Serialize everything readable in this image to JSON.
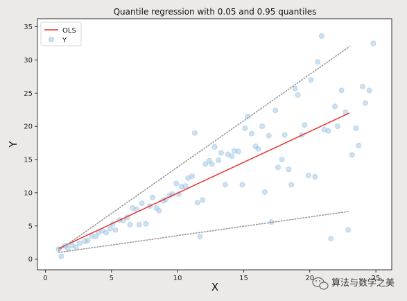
{
  "chart_data": {
    "type": "scatter",
    "title": "Quantile regression with 0.05 and 0.95 quantiles",
    "xlabel": "X",
    "ylabel": "Y",
    "xlim": [
      -0.6,
      26.2
    ],
    "ylim": [
      -1.6,
      36.2
    ],
    "xticks": [
      0,
      5,
      10,
      15,
      20,
      25
    ],
    "yticks": [
      0,
      5,
      10,
      15,
      20,
      25,
      30,
      35
    ],
    "legend_position": "top-left",
    "legend": [
      {
        "label": "OLS",
        "kind": "line",
        "color": "#e8312b"
      },
      {
        "label": "Y",
        "kind": "marker",
        "color": "#8fbcdf"
      }
    ],
    "scatter": {
      "name": "Y",
      "color": "#8fbcdf",
      "points": [
        [
          1,
          1.5
        ],
        [
          1.2,
          0.4
        ],
        [
          1.5,
          2.0
        ],
        [
          1.7,
          1.6
        ],
        [
          2.0,
          2.1
        ],
        [
          2.3,
          1.8
        ],
        [
          2.6,
          2.4
        ],
        [
          3.0,
          2.7
        ],
        [
          3.2,
          2.8
        ],
        [
          3.5,
          3.5
        ],
        [
          3.8,
          3.4
        ],
        [
          4.0,
          4.0
        ],
        [
          4.3,
          4.3
        ],
        [
          4.6,
          4.0
        ],
        [
          4.9,
          4.6
        ],
        [
          5.1,
          5.3
        ],
        [
          5.3,
          4.4
        ],
        [
          5.6,
          5.9
        ],
        [
          5.9,
          5.8
        ],
        [
          6.2,
          6.3
        ],
        [
          6.4,
          5.2
        ],
        [
          6.6,
          7.7
        ],
        [
          6.9,
          7.5
        ],
        [
          7.1,
          5.2
        ],
        [
          7.3,
          8.4
        ],
        [
          7.6,
          5.3
        ],
        [
          7.9,
          8.0
        ],
        [
          8.1,
          9.3
        ],
        [
          8.4,
          7.7
        ],
        [
          8.6,
          7.3
        ],
        [
          8.9,
          8.8
        ],
        [
          9.1,
          9.0
        ],
        [
          9.4,
          9.6
        ],
        [
          9.6,
          9.8
        ],
        [
          9.9,
          11.4
        ],
        [
          10.1,
          9.8
        ],
        [
          10.3,
          10.9
        ],
        [
          10.6,
          11.0
        ],
        [
          10.8,
          12.2
        ],
        [
          11.1,
          12.5
        ],
        [
          11.3,
          19.0
        ],
        [
          11.5,
          8.5
        ],
        [
          11.7,
          3.4
        ],
        [
          11.9,
          8.9
        ],
        [
          12.1,
          14.3
        ],
        [
          12.4,
          14.8
        ],
        [
          12.6,
          14.3
        ],
        [
          12.8,
          16.9
        ],
        [
          13.1,
          14.9
        ],
        [
          13.3,
          16.0
        ],
        [
          13.6,
          11.2
        ],
        [
          13.8,
          15.8
        ],
        [
          14.1,
          15.5
        ],
        [
          14.3,
          16.3
        ],
        [
          14.6,
          16.2
        ],
        [
          14.9,
          11.2
        ],
        [
          15.1,
          19.7
        ],
        [
          15.3,
          21.5
        ],
        [
          15.6,
          18.9
        ],
        [
          15.9,
          17.0
        ],
        [
          16.1,
          16.6
        ],
        [
          16.4,
          20.0
        ],
        [
          16.6,
          10.1
        ],
        [
          16.9,
          18.6
        ],
        [
          17.1,
          5.6
        ],
        [
          17.4,
          22.4
        ],
        [
          17.6,
          13.8
        ],
        [
          17.9,
          15.0
        ],
        [
          18.1,
          18.7
        ],
        [
          18.4,
          13.5
        ],
        [
          18.6,
          11.2
        ],
        [
          18.9,
          25.7
        ],
        [
          19.1,
          24.7
        ],
        [
          19.4,
          18.7
        ],
        [
          19.6,
          20.2
        ],
        [
          19.9,
          12.6
        ],
        [
          20.1,
          27.0
        ],
        [
          20.4,
          12.4
        ],
        [
          20.6,
          29.7
        ],
        [
          20.9,
          33.6
        ],
        [
          21.1,
          19.5
        ],
        [
          21.4,
          19.3
        ],
        [
          21.6,
          3.1
        ],
        [
          21.9,
          23.0
        ],
        [
          22.1,
          20.0
        ],
        [
          22.4,
          25.4
        ],
        [
          22.7,
          22.1
        ],
        [
          22.9,
          4.4
        ],
        [
          23.2,
          15.7
        ],
        [
          23.5,
          19.7
        ],
        [
          23.7,
          17.1
        ],
        [
          24.0,
          26.0
        ],
        [
          24.2,
          23.5
        ],
        [
          24.5,
          25.4
        ],
        [
          24.8,
          32.5
        ]
      ]
    },
    "lines": [
      {
        "name": "OLS",
        "style": "solid",
        "color": "#e8312b",
        "x": [
          1,
          23
        ],
        "y": [
          1.6,
          22.0
        ]
      },
      {
        "name": "",
        "style": "dotted",
        "color": "#999999",
        "x": [
          1,
          23
        ],
        "y": [
          1.3,
          32.0
        ]
      },
      {
        "name": "",
        "style": "dotted",
        "color": "#999999",
        "x": [
          1,
          23
        ],
        "y": [
          1.0,
          7.2
        ]
      }
    ]
  },
  "watermark": {
    "text": "算法与数学之美",
    "icon": "wechat-icon"
  }
}
